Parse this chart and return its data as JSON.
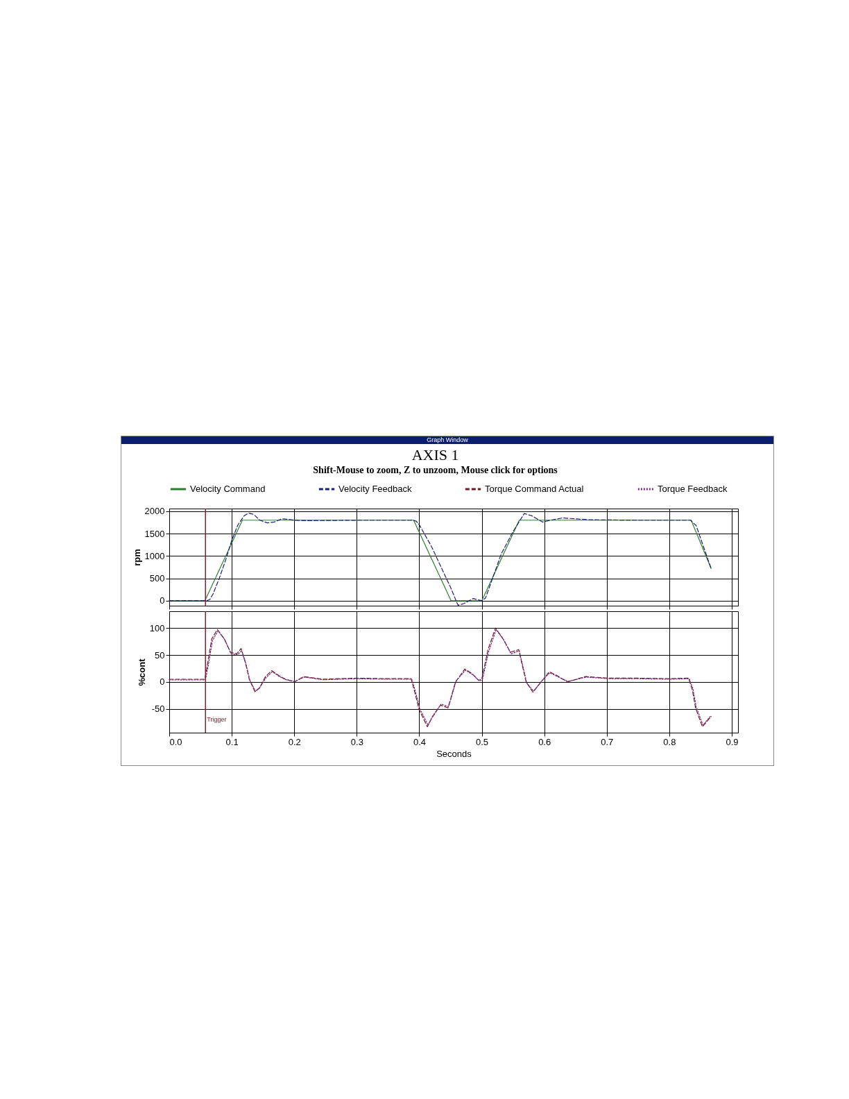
{
  "chart_data": [
    {
      "type": "line",
      "title": "AXIS 1",
      "subtitle": "Shift-Mouse to zoom, Z to unzoom, Mouse click for options",
      "annotations": [
        "Graph Window"
      ],
      "ylabel": "rpm",
      "xlim": [
        0,
        0.91
      ],
      "xticks": [
        0,
        0.1,
        0.2,
        0.3,
        0.4,
        0.5,
        0.6,
        0.7,
        0.8,
        0.9
      ],
      "ylim": [
        -110,
        2060
      ],
      "yticks": [
        0,
        500,
        1000,
        1500,
        2000
      ],
      "grid": true,
      "legend": "top",
      "tick_labels": "y",
      "ref_lines": [
        {
          "axis": "x",
          "value": 0.058,
          "label": null,
          "color": "#8b1a2a"
        }
      ],
      "series": [
        {
          "name": "Velocity Command",
          "color": "#2e7d32",
          "line_style": "solid",
          "x": [
            0,
            0.057,
            0.117,
            0.391,
            0.451,
            0.5,
            0.56,
            0.835,
            0.867
          ],
          "values": [
            0,
            0,
            1800,
            1800,
            0,
            0,
            1800,
            1800,
            720
          ]
        },
        {
          "name": "Velocity Feedback",
          "color": "#1a1f6e",
          "line_style": "dashed",
          "x": [
            0,
            0.06,
            0.065,
            0.07,
            0.08,
            0.09,
            0.1,
            0.11,
            0.12,
            0.127,
            0.135,
            0.145,
            0.157,
            0.168,
            0.18,
            0.19,
            0.2,
            0.22,
            0.3,
            0.39,
            0.395,
            0.4,
            0.41,
            0.42,
            0.43,
            0.44,
            0.45,
            0.462,
            0.472,
            0.486,
            0.5,
            0.506,
            0.516,
            0.531,
            0.549,
            0.568,
            0.58,
            0.597,
            0.61,
            0.629,
            0.673,
            0.75,
            0.834,
            0.843,
            0.855,
            0.867
          ],
          "values": [
            0,
            0,
            30,
            150,
            500,
            900,
            1350,
            1700,
            1900,
            1960,
            1930,
            1800,
            1740,
            1760,
            1830,
            1820,
            1800,
            1790,
            1800,
            1800,
            1780,
            1700,
            1450,
            1200,
            900,
            600,
            300,
            -100,
            -60,
            50,
            0,
            60,
            450,
            1040,
            1520,
            1950,
            1900,
            1760,
            1800,
            1850,
            1810,
            1800,
            1800,
            1680,
            1200,
            720
          ]
        }
      ]
    },
    {
      "type": "line",
      "xlabel": "Seconds",
      "ylabel": "%cont",
      "xlim": [
        0,
        0.91
      ],
      "xticks": [
        {
          "value": 0,
          "label": "0.0"
        },
        0.1,
        0.2,
        0.3,
        0.4,
        0.5,
        0.6,
        0.7,
        0.8,
        0.9
      ],
      "ylim": [
        -94,
        131
      ],
      "yticks": [
        -50,
        0,
        50,
        100
      ],
      "grid": true,
      "legend": "top",
      "ref_lines": [
        {
          "axis": "x",
          "value": 0.058,
          "label": "Trigger",
          "color": "#8b1a2a"
        }
      ],
      "series": [
        {
          "name": "Torque Command Actual",
          "color": "#6b1a24",
          "line_style": "dashed",
          "x": [
            0,
            0.057,
            0.062,
            0.068,
            0.077,
            0.088,
            0.098,
            0.108,
            0.115,
            0.122,
            0.128,
            0.137,
            0.144,
            0.154,
            0.164,
            0.175,
            0.186,
            0.2,
            0.215,
            0.245,
            0.3,
            0.35,
            0.387,
            0.393,
            0.4,
            0.413,
            0.42,
            0.434,
            0.446,
            0.458,
            0.473,
            0.485,
            0.495,
            0.5,
            0.51,
            0.522,
            0.534,
            0.546,
            0.559,
            0.565,
            0.571,
            0.582,
            0.595,
            0.608,
            0.62,
            0.637,
            0.666,
            0.703,
            0.75,
            0.8,
            0.831,
            0.837,
            0.842,
            0.853,
            0.867
          ],
          "values": [
            5,
            5,
            38,
            80,
            97,
            80,
            55,
            52,
            62,
            35,
            5,
            -18,
            -12,
            10,
            21,
            12,
            5,
            0,
            10,
            5,
            7,
            6,
            6,
            -20,
            -52,
            -83,
            -67,
            -43,
            -48,
            0,
            24,
            15,
            3,
            5,
            60,
            100,
            80,
            55,
            60,
            30,
            0,
            -19,
            0,
            19,
            12,
            0,
            10,
            7,
            7,
            6,
            7,
            -15,
            -48,
            -83,
            -64
          ]
        },
        {
          "name": "Torque Feedback",
          "color": "#7a2a7a",
          "line_style": "dotted",
          "x": [
            0,
            0.058,
            0.063,
            0.069,
            0.078,
            0.089,
            0.099,
            0.109,
            0.116,
            0.123,
            0.129,
            0.138,
            0.145,
            0.155,
            0.165,
            0.176,
            0.187,
            0.201,
            0.216,
            0.246,
            0.3,
            0.35,
            0.388,
            0.394,
            0.401,
            0.414,
            0.421,
            0.435,
            0.447,
            0.459,
            0.474,
            0.486,
            0.496,
            0.501,
            0.511,
            0.523,
            0.535,
            0.547,
            0.56,
            0.566,
            0.572,
            0.583,
            0.596,
            0.609,
            0.621,
            0.638,
            0.667,
            0.704,
            0.75,
            0.8,
            0.832,
            0.838,
            0.843,
            0.854,
            0.867
          ],
          "values": [
            4,
            4,
            34,
            76,
            95,
            78,
            52,
            50,
            58,
            32,
            3,
            -17,
            -10,
            8,
            19,
            10,
            4,
            1,
            9,
            4,
            6,
            5,
            5,
            -18,
            -50,
            -80,
            -64,
            -41,
            -46,
            2,
            22,
            13,
            2,
            4,
            56,
            97,
            78,
            52,
            58,
            28,
            -2,
            -17,
            2,
            17,
            10,
            1,
            9,
            6,
            6,
            5,
            6,
            -13,
            -46,
            -80,
            -62
          ]
        }
      ]
    }
  ]
}
